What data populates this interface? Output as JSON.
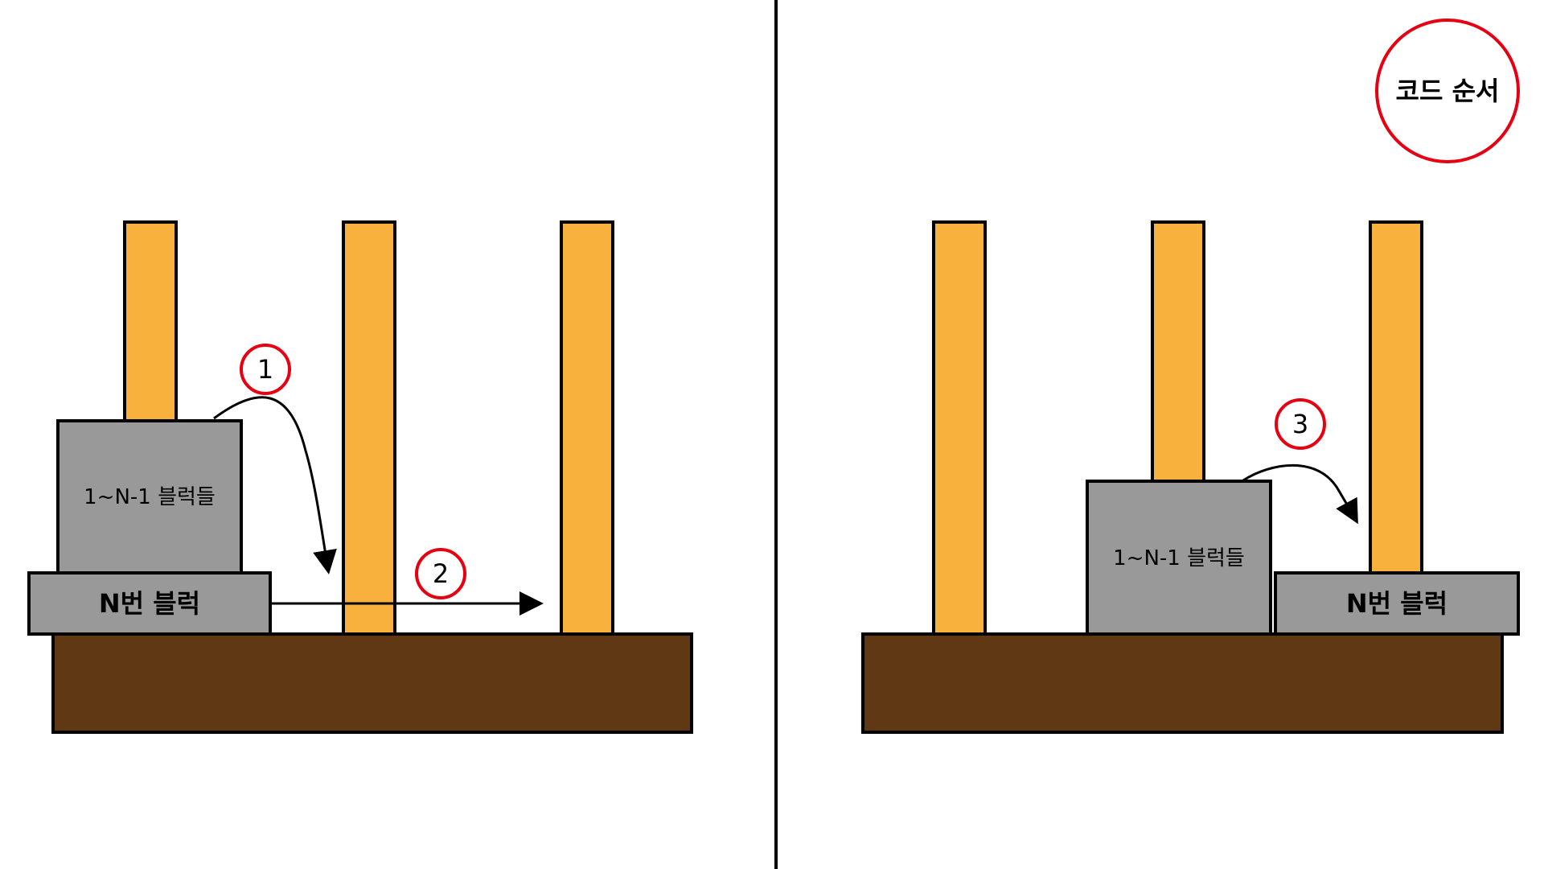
{
  "colors": {
    "peg": "#F9B13D",
    "base": "#603813",
    "block": "#999999",
    "step_ring": "#E60012",
    "line": "#000000"
  },
  "legend": {
    "title": "코드 순서"
  },
  "left_panel": {
    "small_stack_label": "1~N-1 블럭들",
    "big_block_label": "N번 블럭",
    "steps": [
      "1",
      "2"
    ]
  },
  "right_panel": {
    "small_stack_label": "1~N-1 블럭들",
    "big_block_label": "N번 블럭",
    "steps": [
      "3"
    ]
  }
}
